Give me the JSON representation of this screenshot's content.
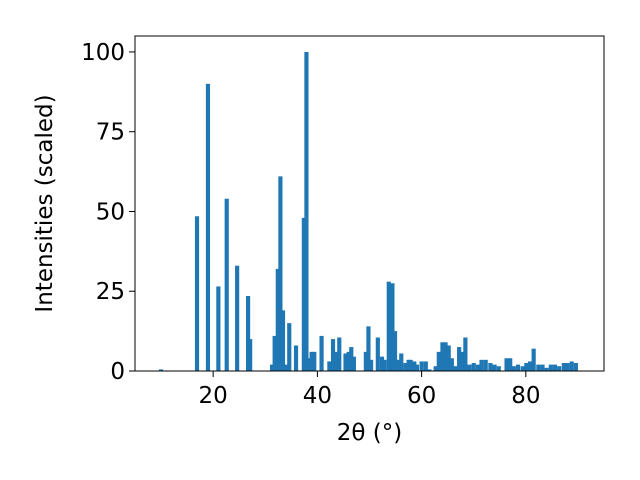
{
  "chart_data": {
    "type": "bar",
    "xlabel": "2θ (°)",
    "ylabel": "Intensities (scaled)",
    "xlim": [
      5,
      95
    ],
    "ylim": [
      0,
      105
    ],
    "xticks": [
      20,
      40,
      60,
      80
    ],
    "yticks": [
      0,
      25,
      50,
      75,
      100
    ],
    "grid": false,
    "bar_color": "#1f77b4",
    "bar_width": 0.8,
    "x": [
      10.0,
      16.9,
      19.0,
      21.0,
      22.6,
      24.6,
      26.7,
      27.1,
      31.3,
      31.8,
      32.4,
      32.9,
      33.4,
      33.9,
      34.6,
      35.9,
      37.4,
      37.9,
      38.4,
      38.9,
      39.4,
      40.8,
      42.3,
      43.0,
      43.6,
      44.2,
      45.4,
      46.0,
      46.5,
      47.0,
      49.3,
      49.8,
      50.3,
      51.6,
      52.4,
      52.9,
      53.7,
      54.4,
      54.9,
      55.4,
      56.1,
      56.9,
      57.5,
      57.9,
      58.6,
      59.1,
      60.0,
      60.8,
      61.5,
      62.7,
      63.3,
      64.0,
      64.6,
      65.2,
      65.8,
      66.5,
      67.2,
      67.8,
      68.4,
      69.2,
      70.0,
      70.8,
      71.5,
      72.3,
      73.2,
      74.0,
      74.8,
      76.3,
      77.0,
      77.7,
      78.5,
      79.4,
      80.1,
      80.8,
      81.5,
      82.4,
      83.2,
      84.0,
      84.8,
      85.6,
      86.4,
      87.3,
      88.0,
      88.8,
      89.6
    ],
    "values": [
      0.5,
      48.5,
      90,
      26.5,
      54,
      33,
      23.5,
      10,
      2,
      11,
      32,
      61,
      19,
      2,
      15,
      8,
      48,
      100,
      4,
      6,
      6,
      11,
      3,
      10,
      6,
      10.5,
      5.5,
      6,
      7.5,
      4.5,
      6,
      14,
      3.5,
      10.5,
      4.5,
      3.5,
      28,
      27.5,
      12.5,
      3.5,
      5.5,
      2.5,
      3.5,
      3.5,
      3,
      2,
      3,
      3,
      0.5,
      1.5,
      6,
      9,
      9,
      8,
      4,
      1.5,
      7.5,
      6,
      10.5,
      2,
      2.5,
      2,
      3.5,
      3.5,
      2.5,
      2,
      1.5,
      4,
      4,
      1.5,
      2,
      1.5,
      2.5,
      3,
      7,
      2,
      2,
      1,
      2,
      2,
      1.5,
      2.5,
      2.5,
      3,
      2.5
    ]
  }
}
